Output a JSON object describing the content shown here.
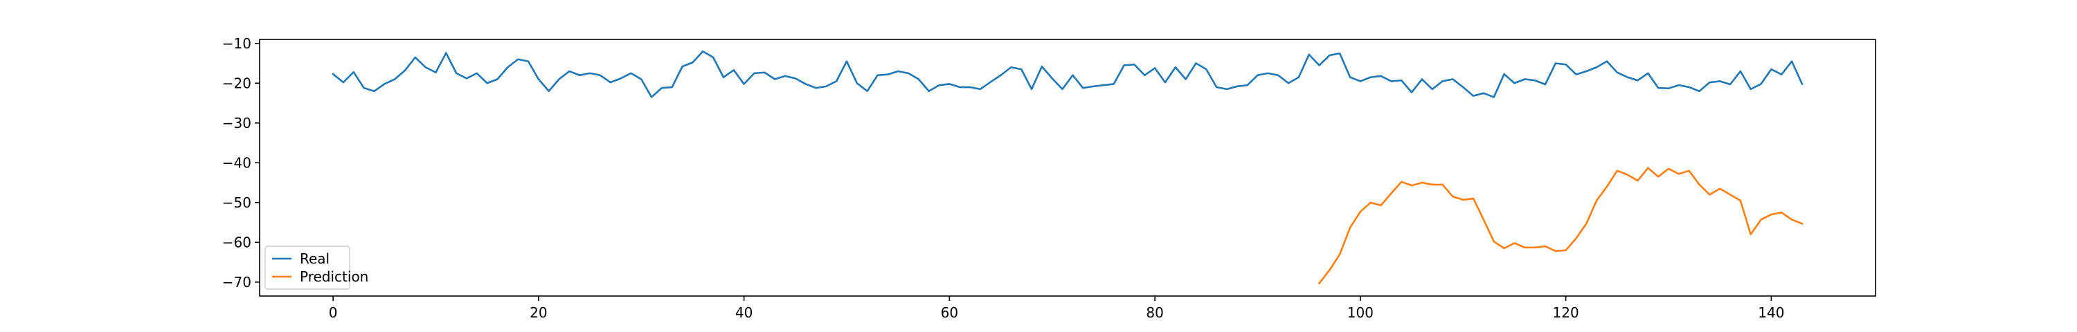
{
  "chart_data": {
    "type": "line",
    "title": "",
    "xlabel": "",
    "ylabel": "",
    "xlim": [
      -7.15,
      150.15
    ],
    "ylim": [
      -73.5,
      -9.0
    ],
    "x_ticks": [
      0,
      20,
      40,
      60,
      80,
      100,
      120,
      140
    ],
    "x_tick_labels": [
      "0",
      "20",
      "40",
      "60",
      "80",
      "100",
      "120",
      "140"
    ],
    "y_ticks": [
      -10,
      -20,
      -30,
      -40,
      -50,
      -60,
      -70
    ],
    "y_tick_labels": [
      "−10",
      "−20",
      "−30",
      "−40",
      "−50",
      "−60",
      "−70"
    ],
    "grid": false,
    "legend_position": "lower-left",
    "series": [
      {
        "name": "Real",
        "color": "#1f77b4",
        "x": [
          0,
          1,
          2,
          3,
          4,
          5,
          6,
          7,
          8,
          9,
          10,
          11,
          12,
          13,
          14,
          15,
          16,
          17,
          18,
          19,
          20,
          21,
          22,
          23,
          24,
          25,
          26,
          27,
          28,
          29,
          30,
          31,
          32,
          33,
          34,
          35,
          36,
          37,
          38,
          39,
          40,
          41,
          42,
          43,
          44,
          45,
          46,
          47,
          48,
          49,
          50,
          51,
          52,
          53,
          54,
          55,
          56,
          57,
          58,
          59,
          60,
          61,
          62,
          63,
          64,
          65,
          66,
          67,
          68,
          69,
          70,
          71,
          72,
          73,
          74,
          75,
          76,
          77,
          78,
          79,
          80,
          81,
          82,
          83,
          84,
          85,
          86,
          87,
          88,
          89,
          90,
          91,
          92,
          93,
          94,
          95,
          96,
          97,
          98,
          99,
          100,
          101,
          102,
          103,
          104,
          105,
          106,
          107,
          108,
          109,
          110,
          111,
          112,
          113,
          114,
          115,
          116,
          117,
          118,
          119,
          120,
          121,
          122,
          123,
          124,
          125,
          126,
          127,
          128,
          129,
          130,
          131,
          132,
          133,
          134,
          135,
          136,
          137,
          138,
          139,
          140,
          141,
          142,
          143
        ],
        "values": [
          -17.7,
          -19.8,
          -17.2,
          -21.2,
          -22.0,
          -20.2,
          -19.0,
          -16.8,
          -13.5,
          -16.0,
          -17.3,
          -12.4,
          -17.5,
          -18.8,
          -17.5,
          -20.0,
          -19.0,
          -16.0,
          -14.0,
          -14.5,
          -19.0,
          -22.0,
          -19.0,
          -17.0,
          -18.0,
          -17.5,
          -18.0,
          -19.8,
          -18.8,
          -17.5,
          -19.0,
          -23.5,
          -21.2,
          -21.0,
          -15.8,
          -14.8,
          -12.0,
          -13.5,
          -18.5,
          -16.7,
          -20.2,
          -17.5,
          -17.3,
          -19.0,
          -18.2,
          -18.8,
          -20.2,
          -21.2,
          -20.8,
          -19.5,
          -14.5,
          -20.0,
          -22.0,
          -18.0,
          -17.8,
          -17.0,
          -17.5,
          -19.0,
          -22.0,
          -20.5,
          -20.2,
          -21.0,
          -21.0,
          -21.5,
          -19.7,
          -18.0,
          -16.0,
          -16.5,
          -21.5,
          -15.8,
          -18.8,
          -21.5,
          -18.0,
          -21.2,
          -20.8,
          -20.5,
          -20.2,
          -15.5,
          -15.3,
          -18.0,
          -16.2,
          -19.8,
          -16.0,
          -19.0,
          -15.0,
          -16.5,
          -21.0,
          -21.5,
          -20.8,
          -20.5,
          -18.0,
          -17.5,
          -18.0,
          -20.0,
          -18.5,
          -12.8,
          -15.5,
          -13.0,
          -12.5,
          -18.5,
          -19.5,
          -18.5,
          -18.2,
          -19.5,
          -19.3,
          -22.3,
          -19.0,
          -21.5,
          -19.5,
          -19.0,
          -21.0,
          -23.2,
          -22.5,
          -23.5,
          -17.7,
          -20.0,
          -19.0,
          -19.3,
          -20.3,
          -15.0,
          -15.3,
          -17.8,
          -17.0,
          -16.0,
          -14.5,
          -17.3,
          -18.5,
          -19.3,
          -17.5,
          -21.2,
          -21.3,
          -20.5,
          -21.0,
          -22.0,
          -19.8,
          -19.5,
          -20.3,
          -17.0,
          -21.5,
          -20.2,
          -16.5,
          -17.8,
          -14.5,
          -20.2
        ]
      },
      {
        "name": "Prediction",
        "color": "#ff7f0e",
        "x": [
          96,
          97,
          98,
          99,
          100,
          101,
          102,
          103,
          104,
          105,
          106,
          107,
          108,
          109,
          110,
          111,
          112,
          113,
          114,
          115,
          116,
          117,
          118,
          119,
          120,
          121,
          122,
          123,
          124,
          125,
          126,
          127,
          128,
          129,
          130,
          131,
          132,
          133,
          134,
          135,
          136,
          137,
          138,
          139,
          140,
          141,
          142,
          143
        ],
        "values": [
          -70.3,
          -67.0,
          -63.0,
          -56.3,
          -52.3,
          -50.0,
          -50.7,
          -47.7,
          -44.8,
          -45.7,
          -45.0,
          -45.5,
          -45.5,
          -48.5,
          -49.3,
          -49.0,
          -54.3,
          -59.8,
          -61.5,
          -60.2,
          -61.3,
          -61.3,
          -61.0,
          -62.2,
          -62.0,
          -59.0,
          -55.3,
          -49.5,
          -46.0,
          -42.0,
          -43.0,
          -44.5,
          -41.3,
          -43.5,
          -41.5,
          -42.8,
          -42.0,
          -45.5,
          -48.0,
          -46.5,
          -48.0,
          -49.5,
          -58.0,
          -54.3,
          -53.0,
          -52.5,
          -54.3,
          -55.3
        ]
      }
    ]
  }
}
